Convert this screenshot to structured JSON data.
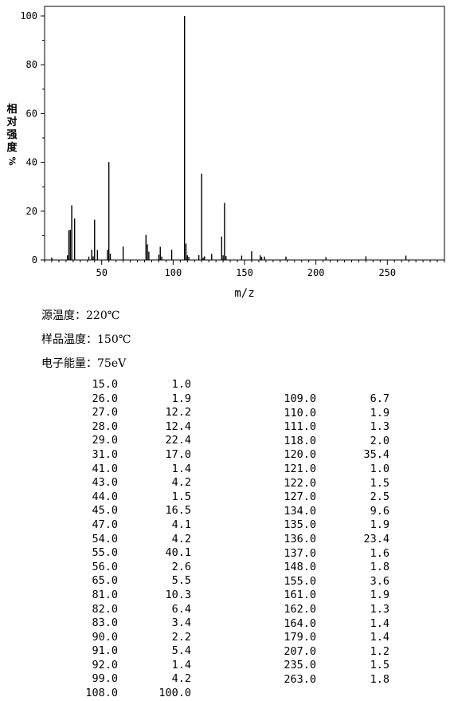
{
  "chart_data": {
    "type": "bar",
    "xlabel": "m/z",
    "ylabel": "相对强度 %",
    "xlim": [
      10,
      290
    ],
    "ylim": [
      0,
      100
    ],
    "x_ticks": [
      50,
      100,
      150,
      200,
      250
    ],
    "y_ticks": [
      0,
      20,
      40,
      60,
      80,
      100
    ],
    "grid": false,
    "peaks": [
      [
        15.0,
        1.0
      ],
      [
        26.0,
        1.9
      ],
      [
        27.0,
        12.2
      ],
      [
        28.0,
        12.4
      ],
      [
        29.0,
        22.4
      ],
      [
        31.0,
        17.0
      ],
      [
        41.0,
        1.4
      ],
      [
        43.0,
        4.2
      ],
      [
        44.0,
        1.5
      ],
      [
        45.0,
        16.5
      ],
      [
        47.0,
        4.1
      ],
      [
        54.0,
        4.2
      ],
      [
        55.0,
        40.1
      ],
      [
        56.0,
        2.6
      ],
      [
        65.0,
        5.5
      ],
      [
        81.0,
        10.3
      ],
      [
        82.0,
        6.4
      ],
      [
        83.0,
        3.4
      ],
      [
        90.0,
        2.2
      ],
      [
        91.0,
        5.4
      ],
      [
        92.0,
        1.4
      ],
      [
        99.0,
        4.2
      ],
      [
        108.0,
        100.0
      ],
      [
        109.0,
        6.7
      ],
      [
        110.0,
        1.9
      ],
      [
        111.0,
        1.3
      ],
      [
        118.0,
        2.0
      ],
      [
        120.0,
        35.4
      ],
      [
        121.0,
        1.0
      ],
      [
        122.0,
        1.5
      ],
      [
        127.0,
        2.5
      ],
      [
        134.0,
        9.6
      ],
      [
        135.0,
        1.9
      ],
      [
        136.0,
        23.4
      ],
      [
        137.0,
        1.6
      ],
      [
        148.0,
        1.8
      ],
      [
        155.0,
        3.6
      ],
      [
        161.0,
        1.9
      ],
      [
        162.0,
        1.3
      ],
      [
        164.0,
        1.4
      ],
      [
        179.0,
        1.4
      ],
      [
        207.0,
        1.2
      ],
      [
        235.0,
        1.5
      ],
      [
        263.0,
        1.8
      ]
    ]
  },
  "y_title_chars": [
    "相",
    "对",
    "强",
    "度"
  ],
  "y_title_unit": "%",
  "conditions": {
    "source_temp": "源温度：220℃",
    "sample_temp": "样品温度：150℃",
    "electron_energy": "电子能量：75eV"
  },
  "table_left": [
    [
      "15.0",
      "1.0"
    ],
    [
      "26.0",
      "1.9"
    ],
    [
      "27.0",
      "12.2"
    ],
    [
      "28.0",
      "12.4"
    ],
    [
      "29.0",
      "22.4"
    ],
    [
      "31.0",
      "17.0"
    ],
    [
      "41.0",
      "1.4"
    ],
    [
      "43.0",
      "4.2"
    ],
    [
      "44.0",
      "1.5"
    ],
    [
      "45.0",
      "16.5"
    ],
    [
      "47.0",
      "4.1"
    ],
    [
      "54.0",
      "4.2"
    ],
    [
      "55.0",
      "40.1"
    ],
    [
      "56.0",
      "2.6"
    ],
    [
      "65.0",
      "5.5"
    ],
    [
      "81.0",
      "10.3"
    ],
    [
      "82.0",
      "6.4"
    ],
    [
      "83.0",
      "3.4"
    ],
    [
      "90.0",
      "2.2"
    ],
    [
      "91.0",
      "5.4"
    ],
    [
      "92.0",
      "1.4"
    ],
    [
      "99.0",
      "4.2"
    ],
    [
      "108.0",
      "100.0"
    ]
  ],
  "table_right": [
    [
      "109.0",
      "6.7"
    ],
    [
      "110.0",
      "1.9"
    ],
    [
      "111.0",
      "1.3"
    ],
    [
      "118.0",
      "2.0"
    ],
    [
      "120.0",
      "35.4"
    ],
    [
      "121.0",
      "1.0"
    ],
    [
      "122.0",
      "1.5"
    ],
    [
      "127.0",
      "2.5"
    ],
    [
      "134.0",
      "9.6"
    ],
    [
      "135.0",
      "1.9"
    ],
    [
      "136.0",
      "23.4"
    ],
    [
      "137.0",
      "1.6"
    ],
    [
      "148.0",
      "1.8"
    ],
    [
      "155.0",
      "3.6"
    ],
    [
      "161.0",
      "1.9"
    ],
    [
      "162.0",
      "1.3"
    ],
    [
      "164.0",
      "1.4"
    ],
    [
      "179.0",
      "1.4"
    ],
    [
      "207.0",
      "1.2"
    ],
    [
      "235.0",
      "1.5"
    ],
    [
      "263.0",
      "1.8"
    ]
  ],
  "colors": {
    "axis": "#000000",
    "bars": "#000000"
  }
}
